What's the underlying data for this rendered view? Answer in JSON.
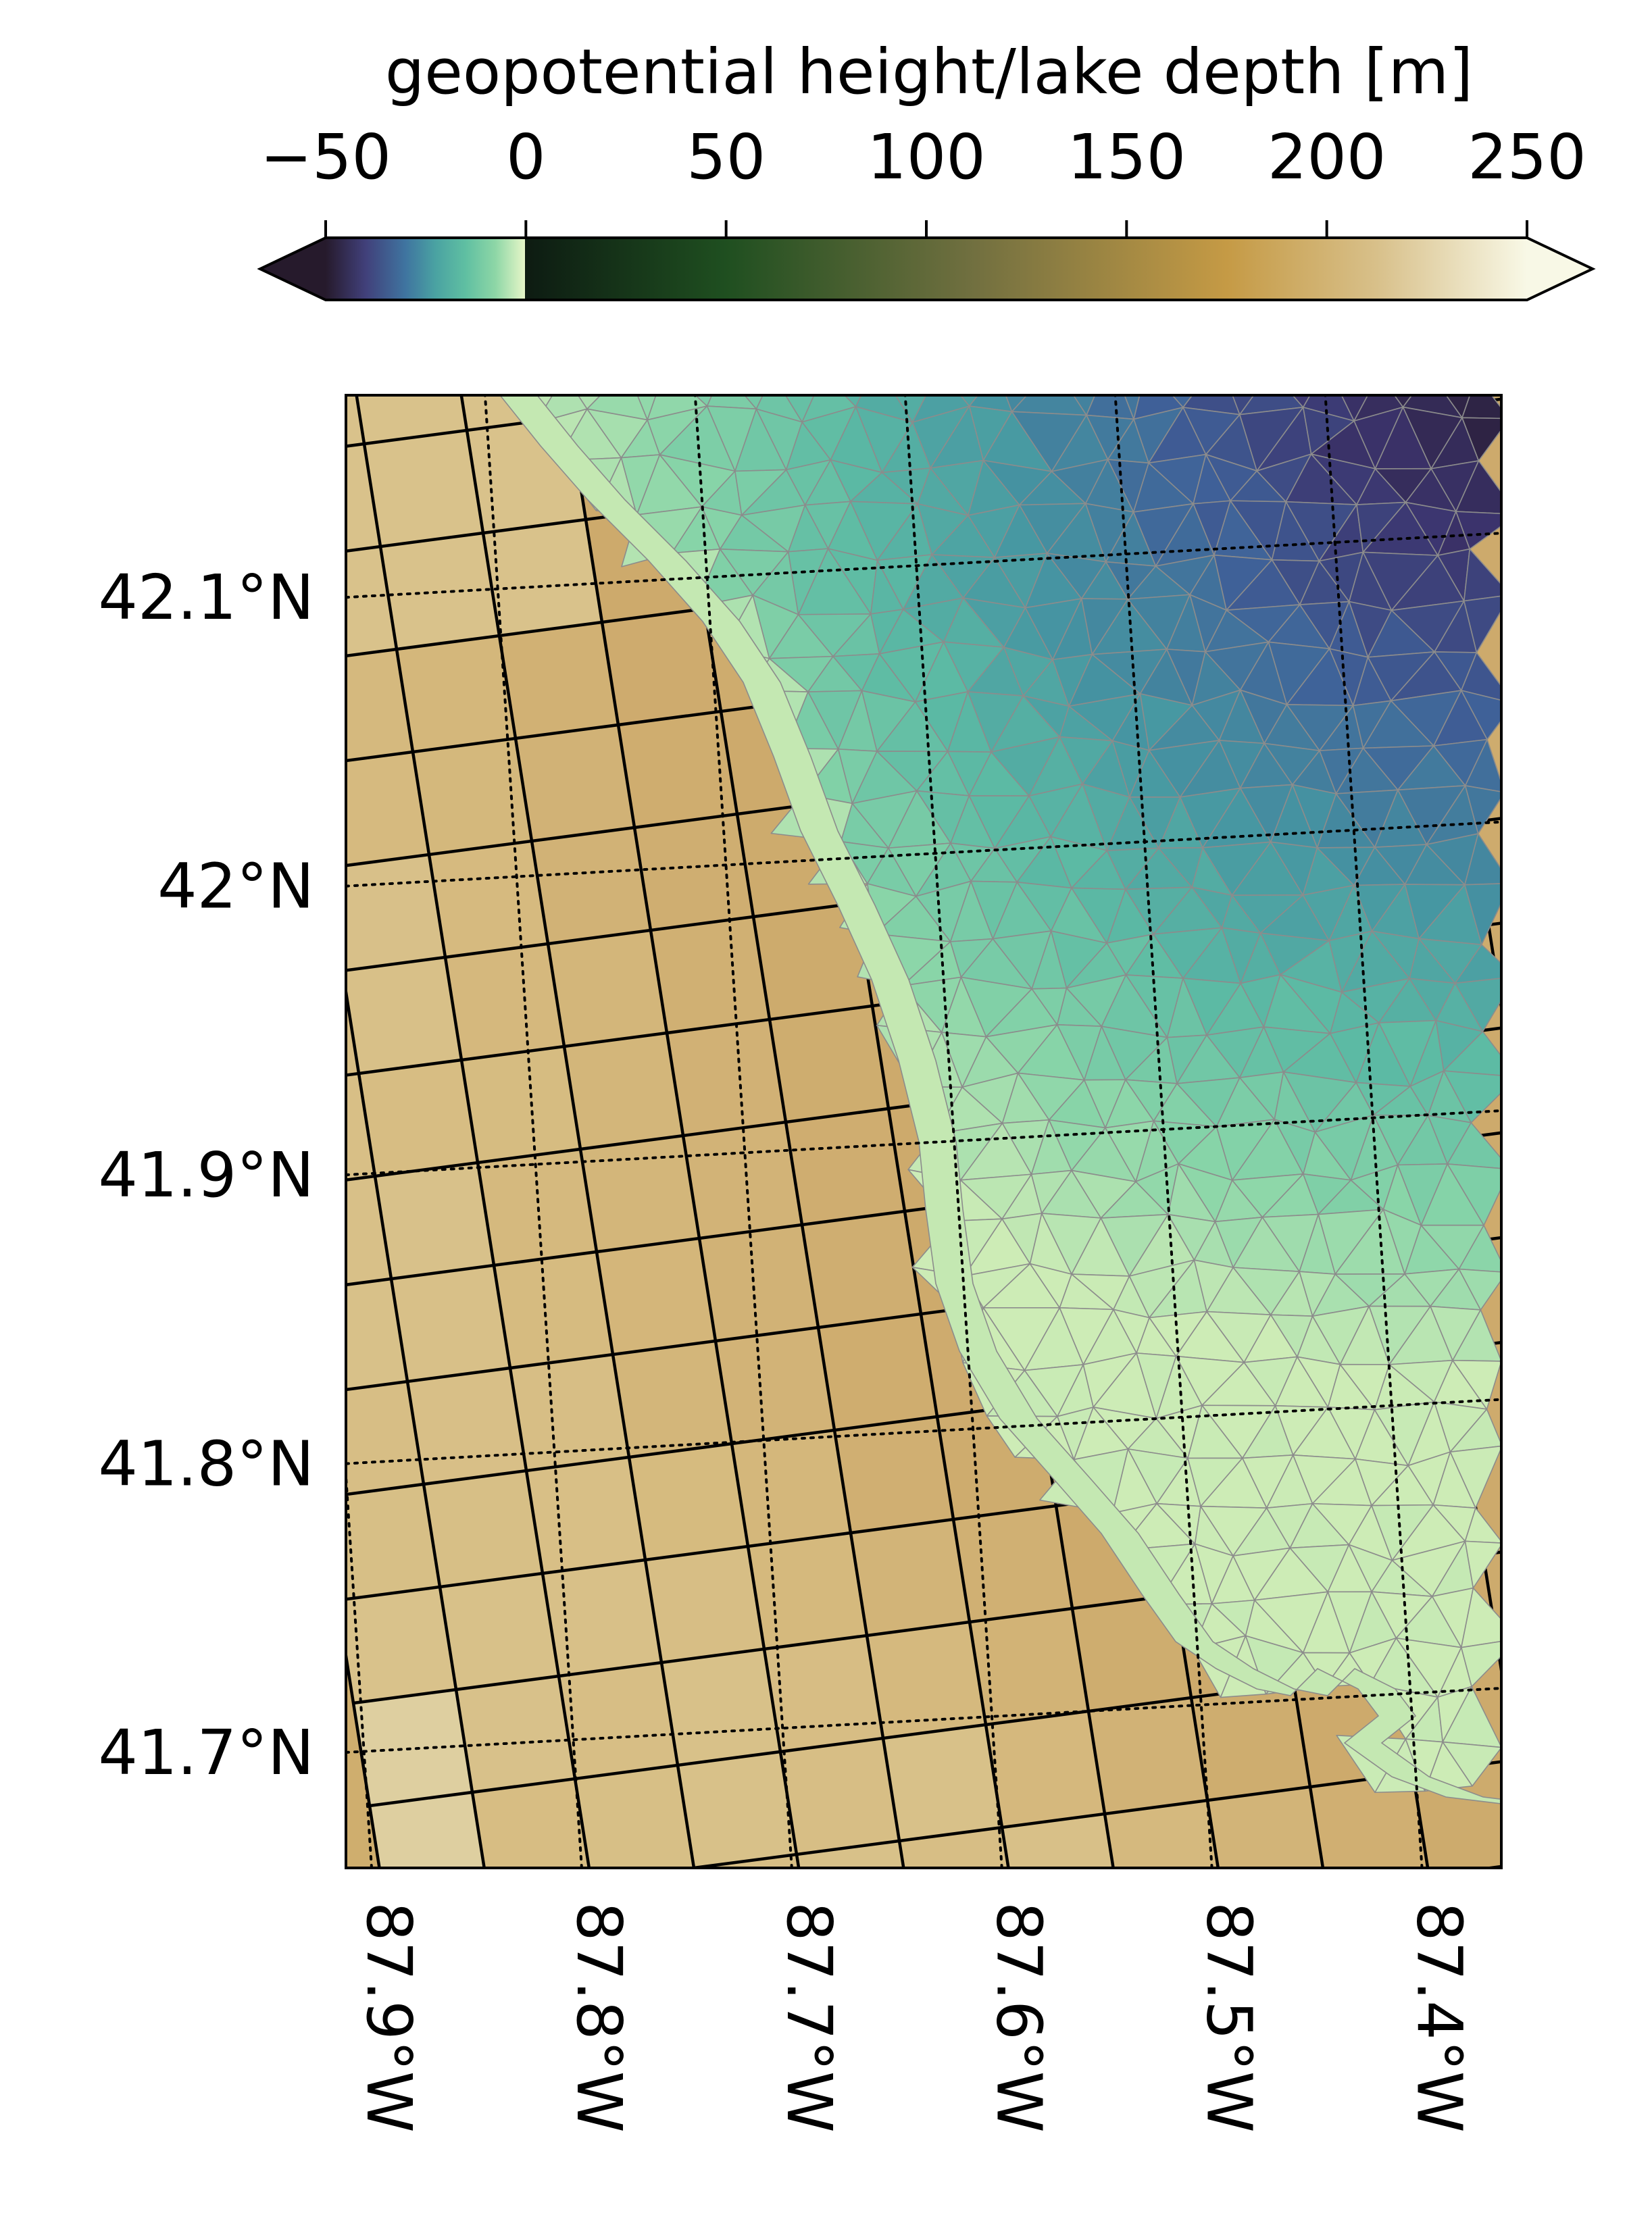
{
  "colorbar": {
    "label": "geopotential height/lake depth [m]",
    "ticks": [
      {
        "value": -50,
        "label": "−50"
      },
      {
        "value": 0,
        "label": "0"
      },
      {
        "value": 50,
        "label": "50"
      },
      {
        "value": 100,
        "label": "100"
      },
      {
        "value": 150,
        "label": "150"
      },
      {
        "value": 200,
        "label": "200"
      },
      {
        "value": 250,
        "label": "250"
      }
    ],
    "range": [
      -50,
      250
    ],
    "extend": "both",
    "lake_colormap": [
      "#261a2c",
      "#41407a",
      "#3f74a0",
      "#4aa2a2",
      "#5fbfa2",
      "#8dd6a6",
      "#d7f1c0"
    ],
    "land_colormap": [
      "#0d1b12",
      "#1f4f20",
      "#727040",
      "#c59a45",
      "#d8c08a",
      "#f8f8e6"
    ]
  },
  "map": {
    "lat_range": [
      41.66,
      42.17
    ],
    "lon_range": [
      -87.9,
      -87.35
    ],
    "lat_labels": [
      {
        "value": 42.1,
        "label": "42.1°N"
      },
      {
        "value": 42.0,
        "label": "42°N"
      },
      {
        "value": 41.9,
        "label": "41.9°N"
      },
      {
        "value": 41.8,
        "label": "41.8°N"
      },
      {
        "value": 41.7,
        "label": "41.7°N"
      }
    ],
    "lon_labels": [
      {
        "value": -87.9,
        "label": "87.9°W"
      },
      {
        "value": -87.8,
        "label": "87.8°W"
      },
      {
        "value": -87.7,
        "label": "87.7°W"
      },
      {
        "value": -87.6,
        "label": "87.6°W"
      },
      {
        "value": -87.5,
        "label": "87.5°W"
      },
      {
        "value": -87.4,
        "label": "87.4°W"
      }
    ],
    "land_value_range_m": [
      170,
      205
    ],
    "lake_depth_range_m": [
      -50,
      -3
    ],
    "land_mesh": "rectangular atmospheric grid (geopotential height)",
    "lake_mesh": "triangular lake mesh (lake depth)"
  }
}
